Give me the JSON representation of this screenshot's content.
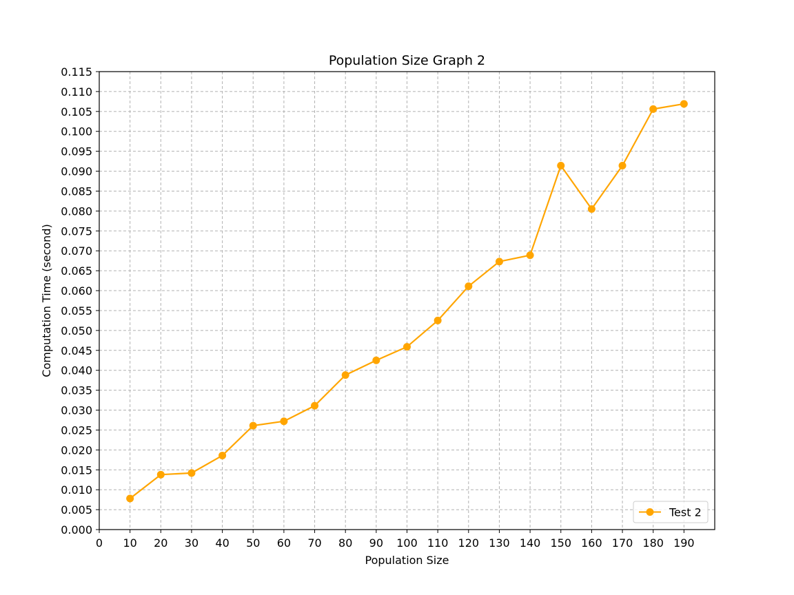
{
  "chart_data": {
    "type": "line",
    "title": "Population Size Graph 2",
    "xlabel": "Population Size",
    "ylabel": "Computation Time (second)",
    "x": [
      10,
      20,
      30,
      40,
      50,
      60,
      70,
      80,
      90,
      100,
      110,
      120,
      130,
      140,
      150,
      160,
      170,
      180,
      190
    ],
    "series": [
      {
        "name": "Test 2",
        "color": "#FFA500",
        "marker": "circle",
        "values": [
          0.0078,
          0.0138,
          0.0142,
          0.0186,
          0.0261,
          0.0272,
          0.0311,
          0.0388,
          0.0425,
          0.0459,
          0.0525,
          0.0611,
          0.0673,
          0.0689,
          0.0914,
          0.0805,
          0.0914,
          0.1056,
          0.1069
        ]
      }
    ],
    "xlim": [
      0,
      200
    ],
    "ylim": [
      0,
      0.115
    ],
    "xticks": [
      "0",
      "10",
      "20",
      "30",
      "40",
      "50",
      "60",
      "70",
      "80",
      "90",
      "100",
      "110",
      "120",
      "130",
      "140",
      "150",
      "160",
      "170",
      "180",
      "190"
    ],
    "yticks": [
      "0.000",
      "0.005",
      "0.010",
      "0.015",
      "0.020",
      "0.025",
      "0.030",
      "0.035",
      "0.040",
      "0.045",
      "0.050",
      "0.055",
      "0.060",
      "0.065",
      "0.070",
      "0.075",
      "0.080",
      "0.085",
      "0.090",
      "0.095",
      "0.100",
      "0.105",
      "0.110",
      "0.115"
    ],
    "grid": true,
    "grid_color": "#b0b0b0",
    "legend_position": "lower-right"
  }
}
